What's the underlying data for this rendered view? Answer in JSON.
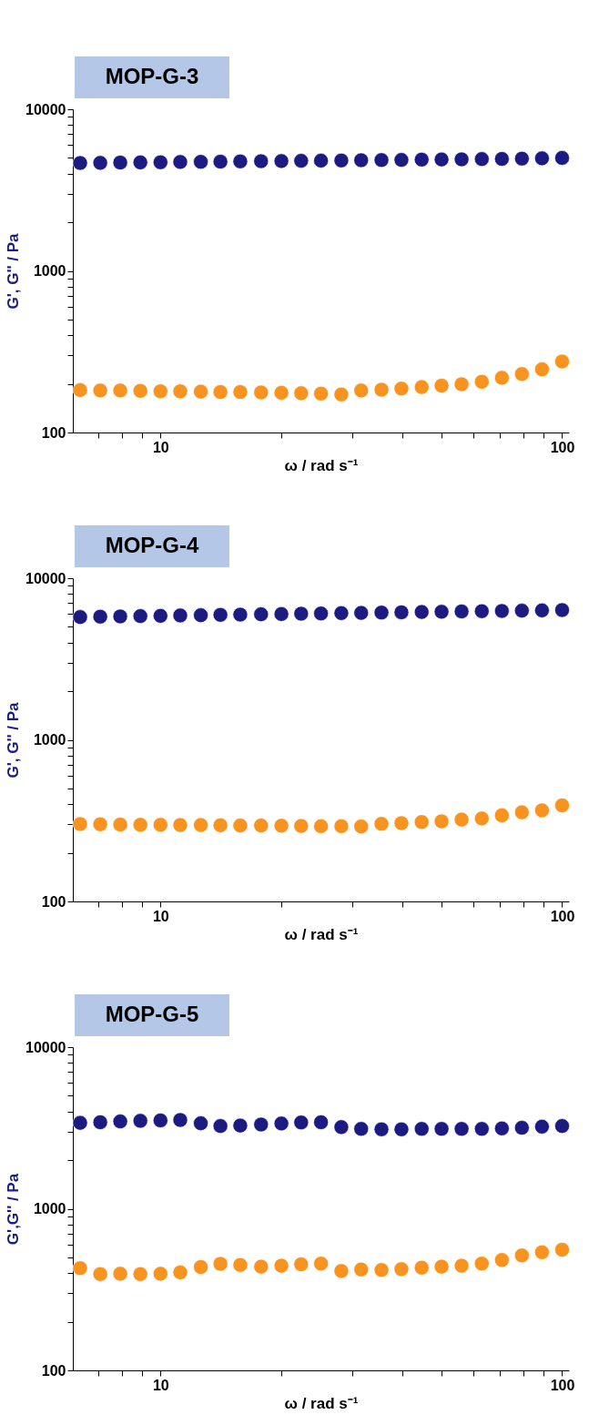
{
  "chart_data": [
    {
      "type": "scatter",
      "title": "MOP-G-3",
      "xlabel": "ω / rad s⁻¹",
      "ylabel": "G', G'' / Pa",
      "log": "xy",
      "grid": false,
      "marker": "circle",
      "x": [
        6.31,
        7.08,
        7.94,
        8.91,
        10,
        11.2,
        12.6,
        14.1,
        15.8,
        17.8,
        20,
        22.4,
        25.1,
        28.2,
        31.6,
        35.5,
        39.8,
        44.7,
        50.1,
        56.2,
        63.1,
        70.8,
        79.4,
        89.1,
        100
      ],
      "xlim": [
        6.05,
        104
      ],
      "ylim": [
        100,
        10000
      ],
      "xticks": [
        {
          "value": 7,
          "label": null
        },
        {
          "value": 8,
          "label": null
        },
        {
          "value": 9,
          "label": null
        },
        10,
        {
          "value": 20,
          "label": null
        },
        {
          "value": 30,
          "label": null
        },
        {
          "value": 40,
          "label": null
        },
        {
          "value": 50,
          "label": null
        },
        {
          "value": 60,
          "label": null
        },
        {
          "value": 70,
          "label": null
        },
        {
          "value": 80,
          "label": null
        },
        {
          "value": 90,
          "label": null
        },
        100
      ],
      "yticks": [
        100,
        {
          "value": 200,
          "label": null
        },
        {
          "value": 300,
          "label": null
        },
        {
          "value": 400,
          "label": null
        },
        {
          "value": 500,
          "label": null
        },
        {
          "value": 600,
          "label": null
        },
        {
          "value": 700,
          "label": null
        },
        {
          "value": 800,
          "label": null
        },
        {
          "value": 900,
          "label": null
        },
        1000,
        {
          "value": 2000,
          "label": null
        },
        {
          "value": 3000,
          "label": null
        },
        {
          "value": 4000,
          "label": null
        },
        {
          "value": 5000,
          "label": null
        },
        {
          "value": 6000,
          "label": null
        },
        {
          "value": 7000,
          "label": null
        },
        {
          "value": 8000,
          "label": null
        },
        {
          "value": 9000,
          "label": null
        },
        10000
      ],
      "series": [
        {
          "color": "#1b1b82",
          "values": [
            4650,
            4660,
            4680,
            4690,
            4700,
            4720,
            4730,
            4740,
            4760,
            4770,
            4780,
            4800,
            4810,
            4820,
            4840,
            4850,
            4860,
            4880,
            4890,
            4900,
            4920,
            4930,
            4950,
            4970,
            5000
          ]
        },
        {
          "color": "#f7931e",
          "values": [
            183,
            182,
            182,
            181,
            180,
            180,
            179,
            178,
            178,
            177,
            176,
            175,
            174,
            172,
            182,
            184,
            187,
            191,
            195,
            199,
            206,
            218,
            230,
            246,
            275
          ]
        }
      ]
    },
    {
      "type": "scatter",
      "title": "MOP-G-4",
      "xlabel": "ω / rad s⁻¹",
      "ylabel": "G', G'' / Pa",
      "log": "xy",
      "grid": false,
      "marker": "circle",
      "x": [
        6.31,
        7.08,
        7.94,
        8.91,
        10,
        11.2,
        12.6,
        14.1,
        15.8,
        17.8,
        20,
        22.4,
        25.1,
        28.2,
        31.6,
        35.5,
        39.8,
        44.7,
        50.1,
        56.2,
        63.1,
        70.8,
        79.4,
        89.1,
        100
      ],
      "xlim": [
        6.05,
        104
      ],
      "ylim": [
        100,
        10000
      ],
      "xticks": [
        {
          "value": 7,
          "label": null
        },
        {
          "value": 8,
          "label": null
        },
        {
          "value": 9,
          "label": null
        },
        10,
        {
          "value": 20,
          "label": null
        },
        {
          "value": 30,
          "label": null
        },
        {
          "value": 40,
          "label": null
        },
        {
          "value": 50,
          "label": null
        },
        {
          "value": 60,
          "label": null
        },
        {
          "value": 70,
          "label": null
        },
        {
          "value": 80,
          "label": null
        },
        {
          "value": 90,
          "label": null
        },
        100
      ],
      "yticks": [
        100,
        {
          "value": 200,
          "label": null
        },
        {
          "value": 300,
          "label": null
        },
        {
          "value": 400,
          "label": null
        },
        {
          "value": 500,
          "label": null
        },
        {
          "value": 600,
          "label": null
        },
        {
          "value": 700,
          "label": null
        },
        {
          "value": 800,
          "label": null
        },
        {
          "value": 900,
          "label": null
        },
        1000,
        {
          "value": 2000,
          "label": null
        },
        {
          "value": 3000,
          "label": null
        },
        {
          "value": 4000,
          "label": null
        },
        {
          "value": 5000,
          "label": null
        },
        {
          "value": 6000,
          "label": null
        },
        {
          "value": 7000,
          "label": null
        },
        {
          "value": 8000,
          "label": null
        },
        {
          "value": 9000,
          "label": null
        },
        10000
      ],
      "series": [
        {
          "color": "#1b1b82",
          "values": [
            5750,
            5780,
            5800,
            5830,
            5850,
            5880,
            5900,
            5930,
            5950,
            5980,
            6000,
            6030,
            6050,
            6080,
            6100,
            6130,
            6150,
            6180,
            6200,
            6230,
            6250,
            6270,
            6300,
            6320,
            6350
          ]
        },
        {
          "color": "#f7931e",
          "values": [
            301,
            300,
            299,
            298,
            298,
            297,
            297,
            296,
            295,
            295,
            294,
            293,
            292,
            292,
            291,
            302,
            305,
            310,
            313,
            321,
            326,
            341,
            356,
            366,
            393
          ]
        }
      ]
    },
    {
      "type": "scatter",
      "title": "MOP-G-5",
      "xlabel": "ω / rad s⁻¹",
      "ylabel": "G',G'' / Pa",
      "log": "xy",
      "grid": false,
      "marker": "circle",
      "x": [
        6.31,
        7.08,
        7.94,
        8.91,
        10,
        11.2,
        12.6,
        14.1,
        15.8,
        17.8,
        20,
        22.4,
        25.1,
        28.2,
        31.6,
        35.5,
        39.8,
        44.7,
        50.1,
        56.2,
        63.1,
        70.8,
        79.4,
        89.1,
        100
      ],
      "xlim": [
        6.05,
        104
      ],
      "ylim": [
        100,
        10000
      ],
      "xticks": [
        {
          "value": 7,
          "label": null
        },
        {
          "value": 8,
          "label": null
        },
        {
          "value": 9,
          "label": null
        },
        10,
        {
          "value": 20,
          "label": null
        },
        {
          "value": 30,
          "label": null
        },
        {
          "value": 40,
          "label": null
        },
        {
          "value": 50,
          "label": null
        },
        {
          "value": 60,
          "label": null
        },
        {
          "value": 70,
          "label": null
        },
        {
          "value": 80,
          "label": null
        },
        {
          "value": 90,
          "label": null
        },
        100
      ],
      "yticks": [
        100,
        {
          "value": 200,
          "label": null
        },
        {
          "value": 300,
          "label": null
        },
        {
          "value": 400,
          "label": null
        },
        {
          "value": 500,
          "label": null
        },
        {
          "value": 600,
          "label": null
        },
        {
          "value": 700,
          "label": null
        },
        {
          "value": 800,
          "label": null
        },
        {
          "value": 900,
          "label": null
        },
        1000,
        {
          "value": 2000,
          "label": null
        },
        {
          "value": 3000,
          "label": null
        },
        {
          "value": 4000,
          "label": null
        },
        {
          "value": 5000,
          "label": null
        },
        {
          "value": 6000,
          "label": null
        },
        {
          "value": 7000,
          "label": null
        },
        {
          "value": 8000,
          "label": null
        },
        {
          "value": 9000,
          "label": null
        },
        10000
      ],
      "series": [
        {
          "color": "#1b1b82",
          "values": [
            3400,
            3430,
            3470,
            3500,
            3520,
            3540,
            3380,
            3250,
            3270,
            3320,
            3370,
            3420,
            3430,
            3200,
            3120,
            3100,
            3100,
            3120,
            3120,
            3120,
            3120,
            3140,
            3170,
            3220,
            3250
          ]
        },
        {
          "color": "#f7931e",
          "values": [
            429,
            394,
            396,
            394,
            396,
            404,
            436,
            456,
            449,
            438,
            444,
            453,
            458,
            412,
            421,
            418,
            423,
            432,
            438,
            444,
            458,
            482,
            514,
            538,
            558
          ]
        }
      ]
    }
  ]
}
